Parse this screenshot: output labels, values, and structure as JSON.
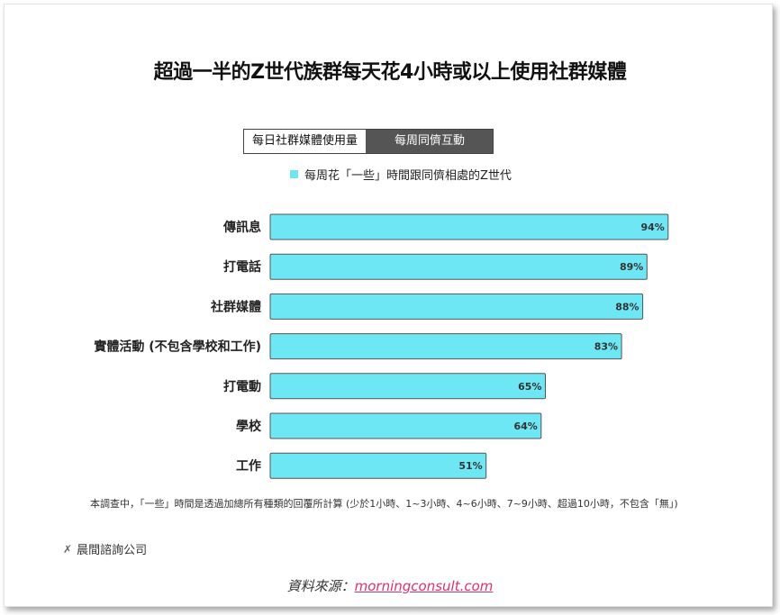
{
  "title": "超過一半的Z世代族群每天花4小時或以上使用社群媒體",
  "tabs": [
    {
      "label": "每日社群媒體使用量",
      "active": false
    },
    {
      "label": "每周同儕互動",
      "active": true
    }
  ],
  "legend": {
    "label": "每周花「一些」時間跟同儕相處的Z世代",
    "color": "#6ee7f5"
  },
  "chart_data": {
    "type": "bar",
    "orientation": "horizontal",
    "categories": [
      "傳訊息",
      "打電話",
      "社群媒體",
      "實體活動 (不包含學校和工作)",
      "打電動",
      "學校",
      "工作"
    ],
    "series": [
      {
        "name": "每周花「一些」時間跟同儕相處的Z世代",
        "values": [
          94,
          89,
          88,
          83,
          65,
          64,
          51
        ],
        "color": "#6ee7f5"
      }
    ],
    "data_labels": [
      "94%",
      "89%",
      "88%",
      "83%",
      "65%",
      "64%",
      "51%"
    ],
    "xlim": [
      0,
      100
    ],
    "grid": false
  },
  "note": "本調查中，「一些」時間是透過加總所有種類的回覆所計算 (少於1小時、1~3小時、4~6小時、7~9小時、超過10小時，不包含「無」)",
  "brand": {
    "label": "晨間諮詢公司",
    "icon": "m-logo-icon"
  },
  "source": {
    "prefix": "資料來源：",
    "link": "morningconsult.com"
  }
}
